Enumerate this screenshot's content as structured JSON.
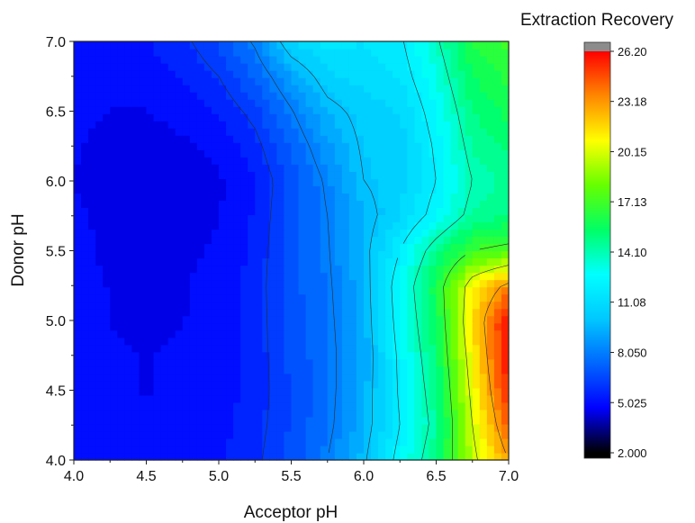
{
  "chart_data": {
    "type": "heatmap",
    "xlabel": "Acceptor pH",
    "ylabel": "Donor pH",
    "xlim": [
      4.0,
      7.0
    ],
    "ylim": [
      4.0,
      7.0
    ],
    "x_ticks": [
      "4.0",
      "4.5",
      "5.0",
      "5.5",
      "6.0",
      "6.5",
      "7.0"
    ],
    "y_ticks": [
      "4.0",
      "4.5",
      "5.0",
      "5.5",
      "6.0",
      "6.5",
      "7.0"
    ],
    "x": [
      4.0,
      4.25,
      4.5,
      4.75,
      5.0,
      5.25,
      5.5,
      5.75,
      6.0,
      6.25,
      6.5,
      6.75,
      7.0
    ],
    "y": [
      4.0,
      4.25,
      4.5,
      4.75,
      5.0,
      5.25,
      5.5,
      5.75,
      6.0,
      6.25,
      6.5,
      6.75,
      7.0
    ],
    "z": [
      [
        5.3,
        5.0,
        4.9,
        5.0,
        5.2,
        5.8,
        6.8,
        8.0,
        9.8,
        12.5,
        15.0,
        19.5,
        23.0
      ],
      [
        5.2,
        4.9,
        4.8,
        4.9,
        5.1,
        5.7,
        6.6,
        7.7,
        9.4,
        12.0,
        14.5,
        20.0,
        24.5
      ],
      [
        5.1,
        4.8,
        4.7,
        4.8,
        5.0,
        5.6,
        6.6,
        7.6,
        9.3,
        12.2,
        14.8,
        20.5,
        25.5
      ],
      [
        5.1,
        4.8,
        4.7,
        4.8,
        5.0,
        5.6,
        6.7,
        7.6,
        9.2,
        12.3,
        15.2,
        21.0,
        26.0
      ],
      [
        5.0,
        4.7,
        4.6,
        4.7,
        4.9,
        5.6,
        6.8,
        7.7,
        9.3,
        12.6,
        15.6,
        21.5,
        26.2
      ],
      [
        5.0,
        4.7,
        4.6,
        4.7,
        4.9,
        5.6,
        6.9,
        7.8,
        9.4,
        12.8,
        16.0,
        21.0,
        23.5
      ],
      [
        4.9,
        4.6,
        4.5,
        4.6,
        4.8,
        5.5,
        6.9,
        7.9,
        9.6,
        12.0,
        14.8,
        17.0,
        17.5
      ],
      [
        4.9,
        4.5,
        4.4,
        4.5,
        4.7,
        5.4,
        6.8,
        8.0,
        9.5,
        10.8,
        12.5,
        14.5,
        15.0
      ],
      [
        4.7,
        4.3,
        4.2,
        4.3,
        4.6,
        5.3,
        6.7,
        8.2,
        10.0,
        10.5,
        12.0,
        14.0,
        14.5
      ],
      [
        4.8,
        4.5,
        4.4,
        4.6,
        4.9,
        5.7,
        7.2,
        8.8,
        10.2,
        10.4,
        12.2,
        14.5,
        15.2
      ],
      [
        4.9,
        4.7,
        4.7,
        5.0,
        5.4,
        6.3,
        7.9,
        9.6,
        10.4,
        10.8,
        12.6,
        15.0,
        15.8
      ],
      [
        5.0,
        4.9,
        5.0,
        5.4,
        6.0,
        7.2,
        9.0,
        10.6,
        11.0,
        11.4,
        13.2,
        15.6,
        16.4
      ],
      [
        5.1,
        5.1,
        5.3,
        5.8,
        6.6,
        8.2,
        10.8,
        11.6,
        11.4,
        11.8,
        13.8,
        16.2,
        17.0
      ]
    ],
    "colorbar": {
      "title": "Extraction Recovery",
      "min": 2.0,
      "max": 26.2,
      "labels": [
        "26.20",
        "23.18",
        "20.15",
        "17.13",
        "14.10",
        "11.08",
        "8.050",
        "5.025",
        "2.000"
      ],
      "label_values": [
        26.2,
        23.18,
        20.15,
        17.13,
        14.1,
        11.08,
        8.05,
        5.025,
        2.0
      ],
      "over_color": "#8c8c8c",
      "under_color": "#000000",
      "stops": [
        "#000000",
        "#0000ff",
        "#0066ff",
        "#00c8ff",
        "#00ffff",
        "#00ff66",
        "#66ff00",
        "#ffff00",
        "#ff8800",
        "#ff0000"
      ]
    },
    "contour_lines": true,
    "grid": false
  }
}
